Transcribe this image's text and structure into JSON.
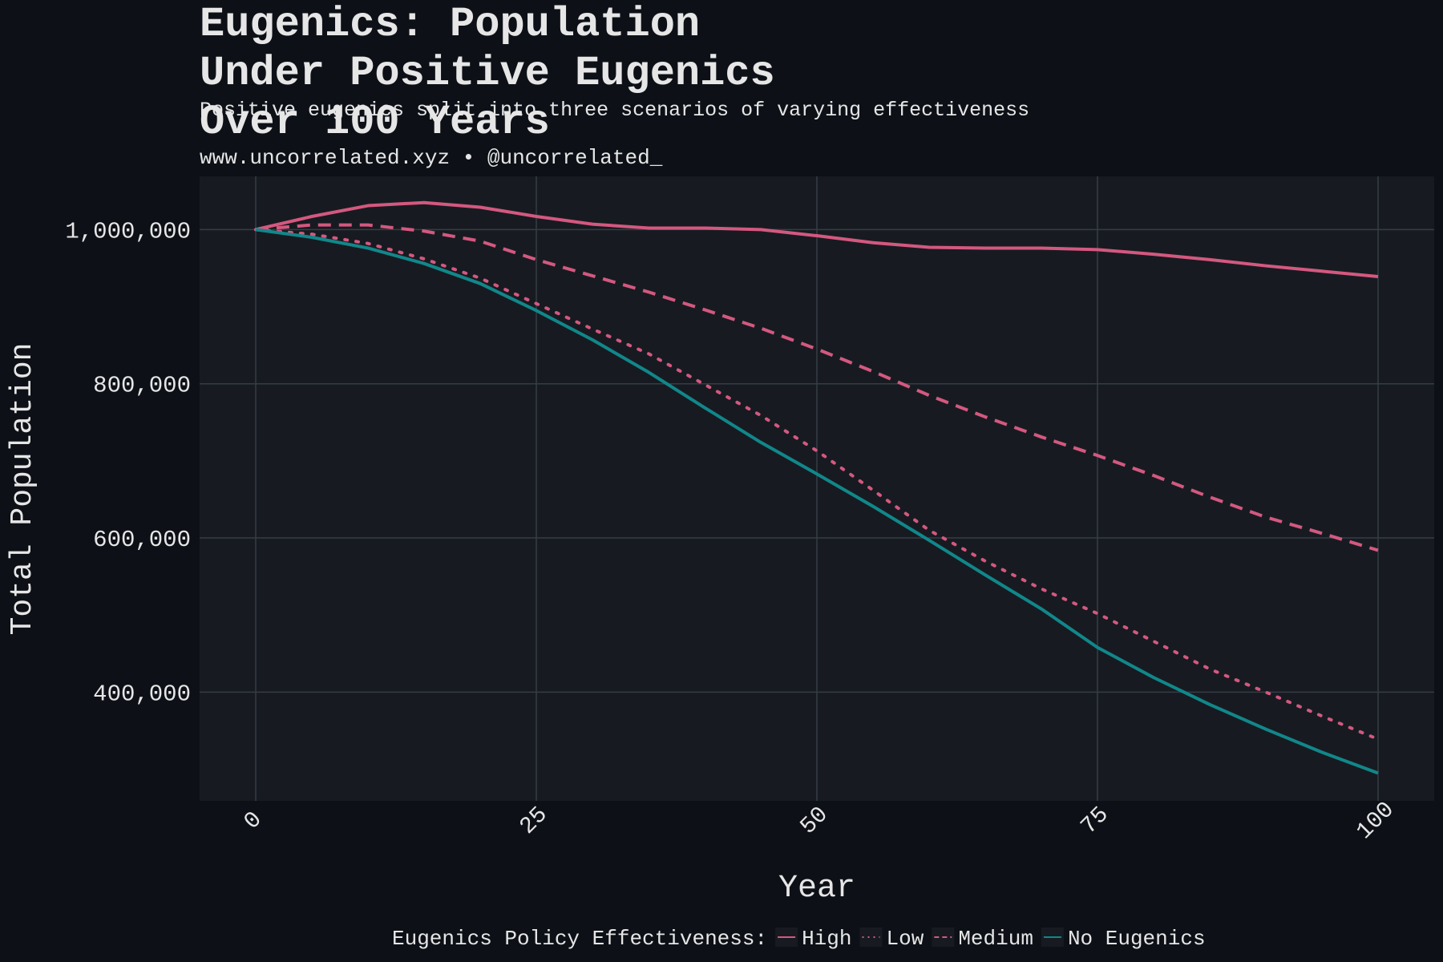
{
  "chart_data": {
    "type": "line",
    "title": "Eugenics: Population Under Positive Eugenics Over 100 Years",
    "subtitle": "Positive eugenics split into three scenarios of varying effectiveness",
    "caption": "www.uncorrelated.xyz • @uncorrelated_",
    "x_label": "Year",
    "y_label": "Total Population",
    "legend_title": "Eugenics Policy Effectiveness:",
    "legend_position": "bottom",
    "grid": true,
    "x": [
      0,
      5,
      10,
      15,
      20,
      25,
      30,
      35,
      40,
      45,
      50,
      55,
      60,
      65,
      70,
      75,
      80,
      85,
      90,
      95,
      100
    ],
    "series": [
      {
        "name": "High",
        "color": "#d4587f",
        "dash": "solid",
        "values": [
          1000000,
          1017000,
          1031000,
          1035000,
          1029000,
          1017000,
          1007000,
          1002000,
          1002000,
          1000000,
          992000,
          983000,
          977000,
          976000,
          976000,
          974000,
          968000,
          961000,
          953000,
          946000,
          939000
        ]
      },
      {
        "name": "Low",
        "color": "#d4587f",
        "dash": "dotted",
        "values": [
          1000000,
          994000,
          982000,
          962000,
          937000,
          904000,
          871000,
          839000,
          799000,
          759000,
          713000,
          662000,
          610000,
          570000,
          534000,
          502000,
          466000,
          430000,
          400000,
          369000,
          339000
        ]
      },
      {
        "name": "Medium",
        "color": "#d4587f",
        "dash": "dashed",
        "values": [
          1000000,
          1006000,
          1006000,
          998000,
          985000,
          961000,
          940000,
          919000,
          896000,
          872000,
          845000,
          816000,
          785000,
          757000,
          731000,
          707000,
          681000,
          653000,
          627000,
          606000,
          584000
        ]
      },
      {
        "name": "No Eugenics",
        "color": "#11878a",
        "dash": "solid",
        "values": [
          1000000,
          990000,
          976000,
          956000,
          930000,
          895000,
          857000,
          815000,
          769000,
          724000,
          683000,
          641000,
          597000,
          552000,
          508000,
          458000,
          419000,
          384000,
          352000,
          322000,
          295000
        ]
      }
    ],
    "xlim": [
      -5,
      105
    ],
    "xticks": [
      0,
      25,
      50,
      75,
      100
    ],
    "ylim": [
      259000,
      1069000
    ],
    "yticks": [
      {
        "value": 400000,
        "label": "400,000"
      },
      {
        "value": 600000,
        "label": "600,000"
      },
      {
        "value": 800000,
        "label": "800,000"
      },
      {
        "value": 1000000,
        "label": "1,000,000"
      }
    ]
  }
}
